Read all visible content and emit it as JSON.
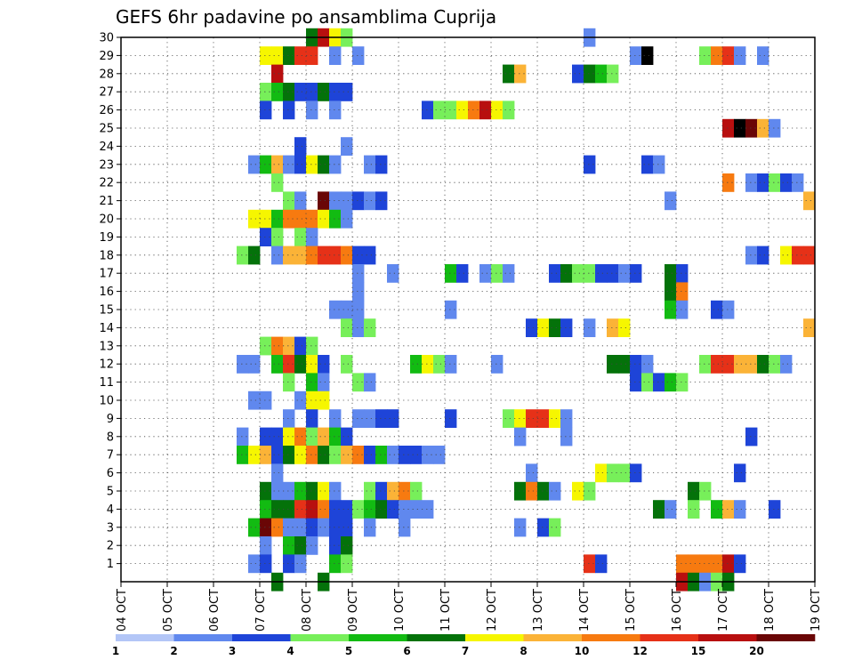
{
  "chart_data": {
    "type": "heatmap",
    "title": "GEFS 6hr padavine po ansamblima Cuprija",
    "xlabel": "",
    "ylabel": "",
    "x_tick_labels": [
      "04 OCT",
      "05 OCT",
      "06 OCT",
      "07 OCT",
      "08 OCT",
      "09 OCT",
      "10 OCT",
      "11 OCT",
      "12 OCT",
      "13 OCT",
      "14 OCT",
      "15 OCT",
      "16 OCT",
      "17 OCT",
      "18 OCT",
      "19 OCT"
    ],
    "y_tick_labels": [
      "1",
      "2",
      "3",
      "4",
      "5",
      "6",
      "7",
      "8",
      "9",
      "10",
      "11",
      "12",
      "13",
      "14",
      "15",
      "16",
      "17",
      "18",
      "19",
      "20",
      "21",
      "22",
      "23",
      "24",
      "25",
      "26",
      "27",
      "28",
      "29",
      "30"
    ],
    "xlim_days": [
      4,
      19
    ],
    "ylim": [
      0,
      30
    ],
    "grid": true,
    "legend": {
      "position": "bottom",
      "labels": [
        "1",
        "2",
        "3",
        "4",
        "5",
        "6",
        "7",
        "8",
        "10",
        "12",
        "15",
        "20"
      ],
      "colors": [
        "#b3c6f7",
        "#6088ee",
        "#1e44d8",
        "#77ef5a",
        "#12bb12",
        "#04720a",
        "#f6f600",
        "#fbb337",
        "#f77a10",
        "#e63118",
        "#b80f0f",
        "#6a0606"
      ]
    },
    "cells": [
      [
        30,
        8.0,
        5
      ],
      [
        30,
        8.25,
        10
      ],
      [
        30,
        8.5,
        6
      ],
      [
        30,
        8.75,
        3
      ],
      [
        30,
        14.0,
        1
      ],
      [
        29,
        7.0,
        6
      ],
      [
        29,
        7.25,
        6
      ],
      [
        29,
        7.5,
        5
      ],
      [
        29,
        7.75,
        9
      ],
      [
        29,
        8.0,
        9
      ],
      [
        29,
        8.5,
        1
      ],
      [
        29,
        9.0,
        1
      ],
      [
        29,
        15.0,
        1
      ],
      [
        29,
        15.25,
        12
      ],
      [
        29,
        16.5,
        3
      ],
      [
        29,
        16.75,
        8
      ],
      [
        29,
        17.0,
        9
      ],
      [
        29,
        17.25,
        1
      ],
      [
        29,
        17.75,
        1
      ],
      [
        28,
        7.25,
        10
      ],
      [
        28,
        12.25,
        5
      ],
      [
        28,
        12.5,
        7
      ],
      [
        28,
        13.75,
        2
      ],
      [
        28,
        14.0,
        5
      ],
      [
        28,
        14.25,
        4
      ],
      [
        28,
        14.5,
        3
      ],
      [
        27,
        7.0,
        3
      ],
      [
        27,
        7.25,
        4
      ],
      [
        27,
        7.5,
        5
      ],
      [
        27,
        7.75,
        2
      ],
      [
        27,
        8.0,
        2
      ],
      [
        27,
        8.25,
        5
      ],
      [
        27,
        8.5,
        2
      ],
      [
        27,
        8.75,
        2
      ],
      [
        26,
        7.0,
        2
      ],
      [
        26,
        7.5,
        2
      ],
      [
        26,
        8.0,
        1
      ],
      [
        26,
        8.5,
        1
      ],
      [
        26,
        10.5,
        2
      ],
      [
        26,
        10.75,
        3
      ],
      [
        26,
        11.0,
        3
      ],
      [
        26,
        11.25,
        6
      ],
      [
        26,
        11.5,
        8
      ],
      [
        26,
        11.75,
        10
      ],
      [
        26,
        12.0,
        6
      ],
      [
        26,
        12.25,
        3
      ],
      [
        25,
        17.0,
        10
      ],
      [
        25,
        17.25,
        12
      ],
      [
        25,
        17.5,
        11
      ],
      [
        25,
        17.75,
        7
      ],
      [
        25,
        18.0,
        1
      ],
      [
        24,
        7.75,
        2
      ],
      [
        24,
        8.75,
        1
      ],
      [
        23,
        6.75,
        1
      ],
      [
        23,
        7.0,
        4
      ],
      [
        23,
        7.25,
        7
      ],
      [
        23,
        7.5,
        1
      ],
      [
        23,
        7.75,
        2
      ],
      [
        23,
        8.0,
        6
      ],
      [
        23,
        8.25,
        5
      ],
      [
        23,
        8.5,
        1
      ],
      [
        23,
        9.25,
        1
      ],
      [
        23,
        9.5,
        2
      ],
      [
        23,
        14.0,
        2
      ],
      [
        23,
        15.25,
        2
      ],
      [
        23,
        15.5,
        1
      ],
      [
        22,
        7.25,
        3
      ],
      [
        22,
        17.0,
        8
      ],
      [
        22,
        17.5,
        1
      ],
      [
        22,
        17.75,
        2
      ],
      [
        22,
        18.0,
        3
      ],
      [
        22,
        18.25,
        2
      ],
      [
        22,
        18.5,
        1
      ],
      [
        21,
        7.5,
        3
      ],
      [
        21,
        7.75,
        1
      ],
      [
        21,
        8.25,
        11
      ],
      [
        21,
        8.5,
        1
      ],
      [
        21,
        8.75,
        1
      ],
      [
        21,
        9.0,
        2
      ],
      [
        21,
        9.25,
        1
      ],
      [
        21,
        9.5,
        2
      ],
      [
        21,
        15.75,
        1
      ],
      [
        21,
        18.75,
        7
      ],
      [
        20,
        6.75,
        6
      ],
      [
        20,
        7.0,
        6
      ],
      [
        20,
        7.25,
        4
      ],
      [
        20,
        7.5,
        8
      ],
      [
        20,
        7.75,
        8
      ],
      [
        20,
        8.0,
        8
      ],
      [
        20,
        8.25,
        6
      ],
      [
        20,
        8.5,
        4
      ],
      [
        20,
        8.75,
        1
      ],
      [
        19,
        7.0,
        2
      ],
      [
        19,
        7.25,
        3
      ],
      [
        19,
        7.75,
        3
      ],
      [
        19,
        8.0,
        1
      ],
      [
        18,
        6.5,
        3
      ],
      [
        18,
        6.75,
        5
      ],
      [
        18,
        7.25,
        1
      ],
      [
        18,
        7.5,
        7
      ],
      [
        18,
        7.75,
        7
      ],
      [
        18,
        8.0,
        8
      ],
      [
        18,
        8.25,
        9
      ],
      [
        18,
        8.5,
        9
      ],
      [
        18,
        8.75,
        8
      ],
      [
        18,
        9.0,
        2
      ],
      [
        18,
        9.25,
        2
      ],
      [
        18,
        17.5,
        1
      ],
      [
        18,
        17.75,
        2
      ],
      [
        18,
        18.25,
        6
      ],
      [
        18,
        18.5,
        9
      ],
      [
        18,
        18.75,
        9
      ],
      [
        17,
        9.0,
        1
      ],
      [
        17,
        9.75,
        1
      ],
      [
        17,
        11.0,
        4
      ],
      [
        17,
        11.25,
        2
      ],
      [
        17,
        11.75,
        1
      ],
      [
        17,
        12.0,
        3
      ],
      [
        17,
        12.25,
        1
      ],
      [
        17,
        13.25,
        2
      ],
      [
        17,
        13.5,
        5
      ],
      [
        17,
        13.75,
        3
      ],
      [
        17,
        14.0,
        3
      ],
      [
        17,
        14.25,
        2
      ],
      [
        17,
        14.5,
        2
      ],
      [
        17,
        14.75,
        1
      ],
      [
        17,
        15.0,
        2
      ],
      [
        17,
        15.75,
        5
      ],
      [
        17,
        16.0,
        2
      ],
      [
        16,
        9.0,
        1
      ],
      [
        16,
        15.75,
        5
      ],
      [
        16,
        16.0,
        8
      ],
      [
        15,
        8.5,
        1
      ],
      [
        15,
        8.75,
        1
      ],
      [
        15,
        9.0,
        1
      ],
      [
        15,
        11.0,
        1
      ],
      [
        15,
        15.75,
        4
      ],
      [
        15,
        16.0,
        1
      ],
      [
        15,
        16.75,
        2
      ],
      [
        15,
        17.0,
        1
      ],
      [
        14,
        8.75,
        3
      ],
      [
        14,
        9.0,
        1
      ],
      [
        14,
        9.25,
        3
      ],
      [
        14,
        12.75,
        2
      ],
      [
        14,
        13.0,
        6
      ],
      [
        14,
        13.25,
        5
      ],
      [
        14,
        13.5,
        2
      ],
      [
        14,
        14.0,
        1
      ],
      [
        14,
        14.5,
        7
      ],
      [
        14,
        14.75,
        6
      ],
      [
        14,
        18.75,
        7
      ],
      [
        13,
        7.0,
        3
      ],
      [
        13,
        7.25,
        8
      ],
      [
        13,
        7.5,
        7
      ],
      [
        13,
        7.75,
        2
      ],
      [
        13,
        8.0,
        3
      ],
      [
        12,
        6.5,
        1
      ],
      [
        12,
        6.75,
        1
      ],
      [
        12,
        7.25,
        4
      ],
      [
        12,
        7.5,
        9
      ],
      [
        12,
        7.75,
        5
      ],
      [
        12,
        8.0,
        6
      ],
      [
        12,
        8.25,
        2
      ],
      [
        12,
        8.75,
        3
      ],
      [
        12,
        10.25,
        4
      ],
      [
        12,
        10.5,
        6
      ],
      [
        12,
        10.75,
        3
      ],
      [
        12,
        11.0,
        1
      ],
      [
        12,
        12.0,
        1
      ],
      [
        12,
        14.5,
        5
      ],
      [
        12,
        14.75,
        5
      ],
      [
        12,
        15.0,
        2
      ],
      [
        12,
        15.25,
        1
      ],
      [
        12,
        16.5,
        3
      ],
      [
        12,
        16.75,
        9
      ],
      [
        12,
        17.0,
        9
      ],
      [
        12,
        17.25,
        7
      ],
      [
        12,
        17.5,
        7
      ],
      [
        12,
        17.75,
        5
      ],
      [
        12,
        18.0,
        3
      ],
      [
        12,
        18.25,
        1
      ],
      [
        11,
        7.5,
        3
      ],
      [
        11,
        8.0,
        4
      ],
      [
        11,
        8.25,
        1
      ],
      [
        11,
        9.0,
        3
      ],
      [
        11,
        9.25,
        1
      ],
      [
        11,
        15.0,
        2
      ],
      [
        11,
        15.25,
        3
      ],
      [
        11,
        15.5,
        2
      ],
      [
        11,
        15.75,
        4
      ],
      [
        11,
        16.0,
        3
      ],
      [
        10,
        6.75,
        1
      ],
      [
        10,
        7.0,
        1
      ],
      [
        10,
        7.75,
        1
      ],
      [
        10,
        8.0,
        6
      ],
      [
        10,
        8.25,
        6
      ],
      [
        9,
        7.5,
        1
      ],
      [
        9,
        8.0,
        2
      ],
      [
        9,
        8.5,
        1
      ],
      [
        9,
        9.0,
        1
      ],
      [
        9,
        9.25,
        1
      ],
      [
        9,
        9.5,
        2
      ],
      [
        9,
        9.75,
        2
      ],
      [
        9,
        11.0,
        2
      ],
      [
        9,
        12.25,
        3
      ],
      [
        9,
        12.5,
        6
      ],
      [
        9,
        12.75,
        9
      ],
      [
        9,
        13.0,
        9
      ],
      [
        9,
        13.25,
        6
      ],
      [
        9,
        13.5,
        1
      ],
      [
        8,
        6.5,
        1
      ],
      [
        8,
        7.0,
        2
      ],
      [
        8,
        7.25,
        2
      ],
      [
        8,
        7.5,
        6
      ],
      [
        8,
        7.75,
        8
      ],
      [
        8,
        8.0,
        3
      ],
      [
        8,
        8.25,
        7
      ],
      [
        8,
        8.5,
        4
      ],
      [
        8,
        8.75,
        2
      ],
      [
        8,
        12.5,
        1
      ],
      [
        8,
        13.5,
        1
      ],
      [
        8,
        17.5,
        2
      ],
      [
        7,
        6.5,
        4
      ],
      [
        7,
        6.75,
        6
      ],
      [
        7,
        7.0,
        7
      ],
      [
        7,
        7.25,
        2
      ],
      [
        7,
        7.5,
        5
      ],
      [
        7,
        7.75,
        6
      ],
      [
        7,
        8.0,
        8
      ],
      [
        7,
        8.25,
        5
      ],
      [
        7,
        8.5,
        3
      ],
      [
        7,
        8.75,
        7
      ],
      [
        7,
        9.0,
        8
      ],
      [
        7,
        9.25,
        2
      ],
      [
        7,
        9.5,
        4
      ],
      [
        7,
        9.75,
        1
      ],
      [
        7,
        10.0,
        2
      ],
      [
        7,
        10.25,
        2
      ],
      [
        7,
        10.5,
        1
      ],
      [
        7,
        10.75,
        1
      ],
      [
        6,
        7.25,
        1
      ],
      [
        6,
        12.75,
        1
      ],
      [
        6,
        14.25,
        6
      ],
      [
        6,
        14.5,
        3
      ],
      [
        6,
        14.75,
        3
      ],
      [
        6,
        15.0,
        2
      ],
      [
        6,
        17.25,
        2
      ],
      [
        5,
        7.0,
        5
      ],
      [
        5,
        7.25,
        1
      ],
      [
        5,
        7.5,
        1
      ],
      [
        5,
        7.75,
        4
      ],
      [
        5,
        8.0,
        5
      ],
      [
        5,
        8.25,
        6
      ],
      [
        5,
        8.5,
        1
      ],
      [
        5,
        9.25,
        3
      ],
      [
        5,
        9.5,
        2
      ],
      [
        5,
        9.75,
        7
      ],
      [
        5,
        10.0,
        8
      ],
      [
        5,
        10.25,
        3
      ],
      [
        5,
        12.5,
        5
      ],
      [
        5,
        12.75,
        8
      ],
      [
        5,
        13.0,
        5
      ],
      [
        5,
        13.25,
        1
      ],
      [
        5,
        13.75,
        6
      ],
      [
        5,
        14.0,
        3
      ],
      [
        5,
        16.25,
        5
      ],
      [
        5,
        16.5,
        3
      ],
      [
        4,
        7.0,
        4
      ],
      [
        4,
        7.25,
        5
      ],
      [
        4,
        7.5,
        5
      ],
      [
        4,
        7.75,
        9
      ],
      [
        4,
        8.0,
        10
      ],
      [
        4,
        8.25,
        8
      ],
      [
        4,
        8.5,
        2
      ],
      [
        4,
        8.75,
        2
      ],
      [
        4,
        9.0,
        3
      ],
      [
        4,
        9.25,
        4
      ],
      [
        4,
        9.5,
        5
      ],
      [
        4,
        9.75,
        2
      ],
      [
        4,
        10.0,
        1
      ],
      [
        4,
        10.25,
        1
      ],
      [
        4,
        10.5,
        1
      ],
      [
        4,
        15.5,
        5
      ],
      [
        4,
        15.75,
        1
      ],
      [
        4,
        16.25,
        3
      ],
      [
        4,
        16.75,
        4
      ],
      [
        4,
        17.0,
        7
      ],
      [
        4,
        17.25,
        1
      ],
      [
        4,
        18.0,
        2
      ],
      [
        3,
        6.75,
        4
      ],
      [
        3,
        7.0,
        11
      ],
      [
        3,
        7.25,
        8
      ],
      [
        3,
        7.5,
        1
      ],
      [
        3,
        7.75,
        1
      ],
      [
        3,
        8.0,
        2
      ],
      [
        3,
        8.25,
        1
      ],
      [
        3,
        8.5,
        2
      ],
      [
        3,
        8.75,
        2
      ],
      [
        3,
        9.25,
        1
      ],
      [
        3,
        10.0,
        1
      ],
      [
        3,
        12.5,
        1
      ],
      [
        3,
        13.0,
        2
      ],
      [
        3,
        13.25,
        3
      ],
      [
        2,
        7.0,
        1
      ],
      [
        2,
        7.5,
        4
      ],
      [
        2,
        7.75,
        5
      ],
      [
        2,
        8.0,
        1
      ],
      [
        2,
        8.5,
        2
      ],
      [
        2,
        8.75,
        5
      ],
      [
        1,
        6.75,
        1
      ],
      [
        1,
        7.0,
        2
      ],
      [
        1,
        7.5,
        2
      ],
      [
        1,
        7.75,
        1
      ],
      [
        1,
        8.5,
        4
      ],
      [
        1,
        8.75,
        3
      ],
      [
        1,
        14.0,
        9
      ],
      [
        1,
        14.25,
        2
      ],
      [
        1,
        16.0,
        8
      ],
      [
        1,
        16.25,
        8
      ],
      [
        1,
        16.5,
        8
      ],
      [
        1,
        16.75,
        8
      ],
      [
        1,
        17.0,
        10
      ],
      [
        1,
        17.25,
        2
      ],
      [
        0,
        7.25,
        5
      ],
      [
        0,
        8.25,
        5
      ],
      [
        0,
        16.0,
        10
      ],
      [
        0,
        16.25,
        5
      ],
      [
        0,
        16.5,
        1
      ],
      [
        0,
        16.75,
        3
      ],
      [
        0,
        17.0,
        5
      ]
    ]
  }
}
